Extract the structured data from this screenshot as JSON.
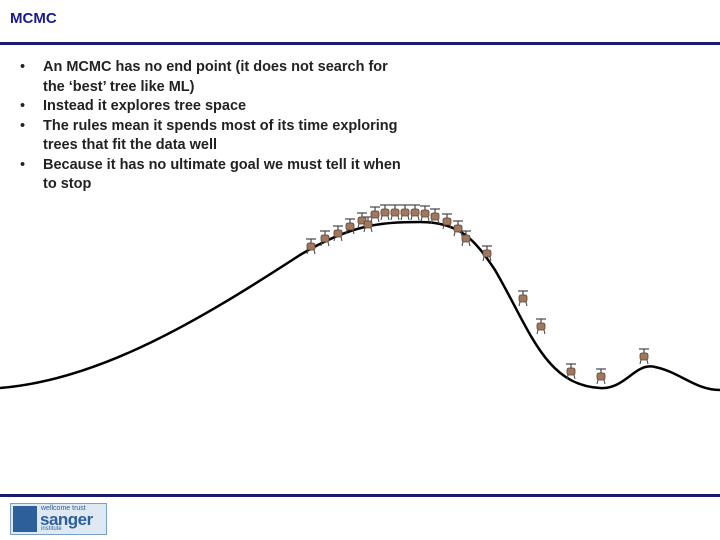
{
  "header": {
    "title": "MCMC"
  },
  "bullets": [
    "An MCMC has no end point (it does not search for the ‘best’ tree like ML)",
    "Instead it explores tree space",
    "The rules mean it spends most of its time exploring trees that fit the data well",
    "Because it has no ultimate goal we must tell it when to stop"
  ],
  "logo": {
    "line1": "wellcome trust",
    "line2": "sanger",
    "line3": "institute"
  }
}
